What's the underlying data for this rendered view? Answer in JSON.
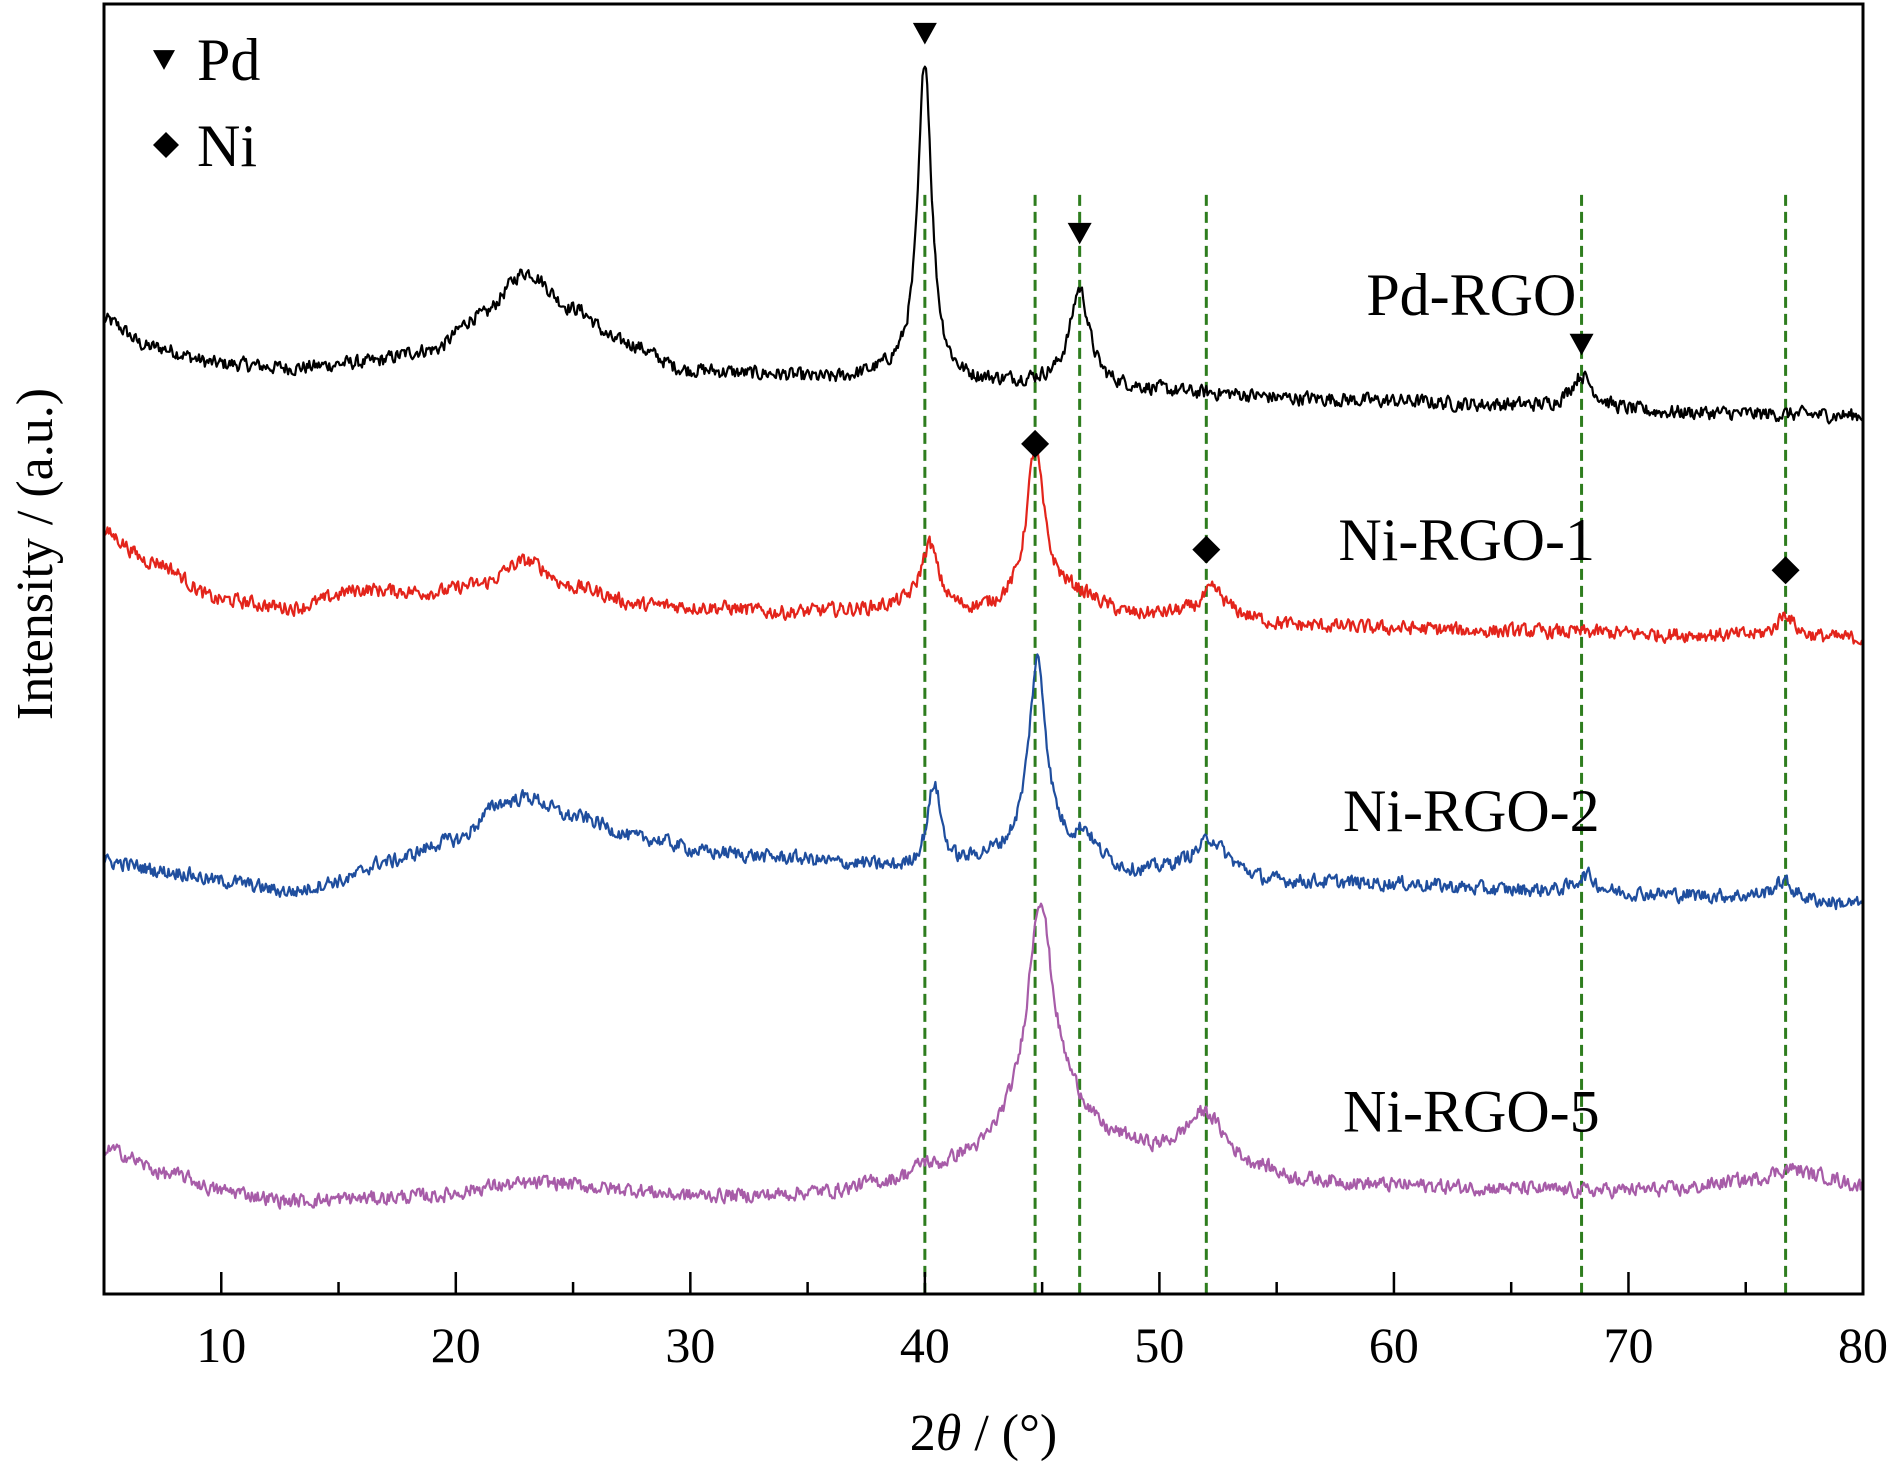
{
  "chart_data": {
    "type": "line",
    "xlabel_prefix": "2",
    "xlabel_symbol": "θ",
    "xlabel_suffix": " / (°)",
    "ylabel": "Intensity / (a.u.)",
    "xlim": [
      5,
      80
    ],
    "xticks": [
      10,
      20,
      30,
      40,
      50,
      60,
      70,
      80
    ],
    "ylim": [
      0,
      100
    ],
    "y_ticks_labeled": false,
    "grid": false,
    "legend": {
      "placement": "top-left",
      "entries": [
        {
          "marker": "triangle-down",
          "label": "Pd"
        },
        {
          "marker": "diamond",
          "label": "Ni"
        }
      ]
    },
    "reference_lines": {
      "style": "dashed",
      "color": "#2e7d1e",
      "x": [
        40.0,
        44.7,
        46.6,
        52.0,
        68.0,
        76.7
      ]
    },
    "series": [
      {
        "name": "Pd-RGO",
        "color": "#000000",
        "baseline": [
          [
            5,
            75.5
          ],
          [
            7,
            73.4
          ],
          [
            10,
            72.1
          ],
          [
            13,
            71.8
          ],
          [
            16,
            72.2
          ],
          [
            19,
            73.2
          ],
          [
            21,
            75.8
          ],
          [
            23,
            79.2
          ],
          [
            25,
            76.4
          ],
          [
            27,
            73.8
          ],
          [
            30,
            71.6
          ],
          [
            33,
            71.3
          ],
          [
            36,
            70.9
          ],
          [
            39,
            71.4
          ],
          [
            42,
            70.6
          ],
          [
            45,
            70.6
          ],
          [
            48,
            70.2
          ],
          [
            52,
            69.8
          ],
          [
            56,
            69.4
          ],
          [
            60,
            69.2
          ],
          [
            64,
            68.9
          ],
          [
            68,
            68.6
          ],
          [
            72,
            68.3
          ],
          [
            76,
            68.2
          ],
          [
            80,
            68.1
          ]
        ],
        "peaks": [
          {
            "x": 40.0,
            "height": 24.5,
            "width": 0.35
          },
          {
            "x": 46.6,
            "height": 7.5,
            "width": 0.5
          },
          {
            "x": 68.0,
            "height": 2.6,
            "width": 0.6
          }
        ],
        "noise": 0.55,
        "markers": [
          {
            "x": 40.0,
            "y": 97.7,
            "shape": "triangle-down"
          },
          {
            "x": 46.6,
            "y": 82.2,
            "shape": "triangle-down"
          },
          {
            "x": 68.0,
            "y": 73.6,
            "shape": "triangle-down"
          }
        ]
      },
      {
        "name": "Ni-RGO-1",
        "color": "#e3241b",
        "baseline": [
          [
            5,
            59.0
          ],
          [
            7,
            56.8
          ],
          [
            10,
            53.8
          ],
          [
            13,
            53.2
          ],
          [
            16,
            54.6
          ],
          [
            19,
            54.4
          ],
          [
            21,
            55.0
          ],
          [
            23,
            56.8
          ],
          [
            25,
            54.8
          ],
          [
            28,
            53.4
          ],
          [
            31,
            53.2
          ],
          [
            34,
            52.8
          ],
          [
            37,
            53.0
          ],
          [
            39,
            53.2
          ],
          [
            42,
            52.8
          ],
          [
            44,
            53.3
          ],
          [
            46,
            54.2
          ],
          [
            49,
            52.6
          ],
          [
            52,
            52.8
          ],
          [
            56,
            51.8
          ],
          [
            60,
            51.6
          ],
          [
            64,
            51.4
          ],
          [
            68,
            51.3
          ],
          [
            72,
            51.1
          ],
          [
            76,
            51.0
          ],
          [
            80,
            50.8
          ]
        ],
        "peaks": [
          {
            "x": 40.2,
            "height": 5.0,
            "width": 0.45
          },
          {
            "x": 44.7,
            "height": 12.0,
            "width": 0.45
          },
          {
            "x": 52.3,
            "height": 1.8,
            "width": 0.55
          },
          {
            "x": 76.7,
            "height": 1.8,
            "width": 0.4
          }
        ],
        "noise": 0.55,
        "markers": [
          {
            "x": 44.7,
            "y": 65.9,
            "shape": "diamond"
          },
          {
            "x": 52.0,
            "y": 57.7,
            "shape": "diamond"
          },
          {
            "x": 76.7,
            "y": 56.1,
            "shape": "diamond"
          }
        ]
      },
      {
        "name": "Ni-RGO-2",
        "color": "#1f4e9e",
        "baseline": [
          [
            5,
            33.5
          ],
          [
            8,
            32.7
          ],
          [
            10,
            32.0
          ],
          [
            13,
            31.2
          ],
          [
            15,
            32.0
          ],
          [
            17,
            33.5
          ],
          [
            20,
            35.2
          ],
          [
            22,
            38.1
          ],
          [
            23,
            38.5
          ],
          [
            25,
            37.0
          ],
          [
            28,
            35.3
          ],
          [
            31,
            34.2
          ],
          [
            34,
            33.8
          ],
          [
            37,
            33.3
          ],
          [
            39,
            32.9
          ],
          [
            41,
            33.0
          ],
          [
            43,
            33.8
          ],
          [
            45,
            34.6
          ],
          [
            47,
            33.5
          ],
          [
            49,
            32.7
          ],
          [
            52,
            33.6
          ],
          [
            55,
            32.0
          ],
          [
            60,
            31.8
          ],
          [
            65,
            31.3
          ],
          [
            70,
            31.0
          ],
          [
            75,
            30.8
          ],
          [
            80,
            30.2
          ]
        ],
        "peaks": [
          {
            "x": 40.4,
            "height": 6.5,
            "width": 0.35
          },
          {
            "x": 44.8,
            "height": 14.5,
            "width": 0.45
          },
          {
            "x": 46.8,
            "height": 2.0,
            "width": 0.45
          },
          {
            "x": 52.2,
            "height": 1.7,
            "width": 0.55
          },
          {
            "x": 68.2,
            "height": 1.4,
            "width": 0.5
          },
          {
            "x": 76.6,
            "height": 1.3,
            "width": 0.5
          }
        ],
        "noise": 0.55,
        "markers": []
      },
      {
        "name": "Ni-RGO-5",
        "color": "#a75ca8",
        "baseline": [
          [
            5,
            11.2
          ],
          [
            8,
            9.2
          ],
          [
            10,
            8.0
          ],
          [
            13,
            7.2
          ],
          [
            16,
            7.4
          ],
          [
            19,
            7.6
          ],
          [
            22,
            8.4
          ],
          [
            24,
            8.6
          ],
          [
            27,
            8.1
          ],
          [
            30,
            7.6
          ],
          [
            33,
            7.6
          ],
          [
            36,
            7.9
          ],
          [
            38,
            8.5
          ],
          [
            40,
            9.0
          ],
          [
            42,
            10.5
          ],
          [
            44,
            12.4
          ],
          [
            46,
            14.0
          ],
          [
            48,
            11.8
          ],
          [
            50,
            11.0
          ],
          [
            52,
            11.4
          ],
          [
            54,
            9.8
          ],
          [
            56,
            8.8
          ],
          [
            60,
            8.4
          ],
          [
            64,
            8.2
          ],
          [
            68,
            8.0
          ],
          [
            72,
            8.1
          ],
          [
            75,
            8.8
          ],
          [
            77,
            9.7
          ],
          [
            78,
            9.2
          ],
          [
            80,
            8.4
          ]
        ],
        "peaks": [
          {
            "x": 44.9,
            "height": 17.5,
            "width": 0.65
          },
          {
            "x": 51.9,
            "height": 2.6,
            "width": 0.9
          },
          {
            "x": 40.0,
            "height": 1.0,
            "width": 0.5
          }
        ],
        "noise": 0.55,
        "markers": []
      }
    ],
    "series_label_positions": [
      {
        "name": "Pd-RGO",
        "x": 63.3,
        "y": 75.9
      },
      {
        "name": "Ni-RGO-1",
        "x": 63.1,
        "y": 56.9
      },
      {
        "name": "Ni-RGO-2",
        "x": 63.3,
        "y": 35.9
      },
      {
        "name": "Ni-RGO-5",
        "x": 63.3,
        "y": 12.6
      }
    ]
  }
}
